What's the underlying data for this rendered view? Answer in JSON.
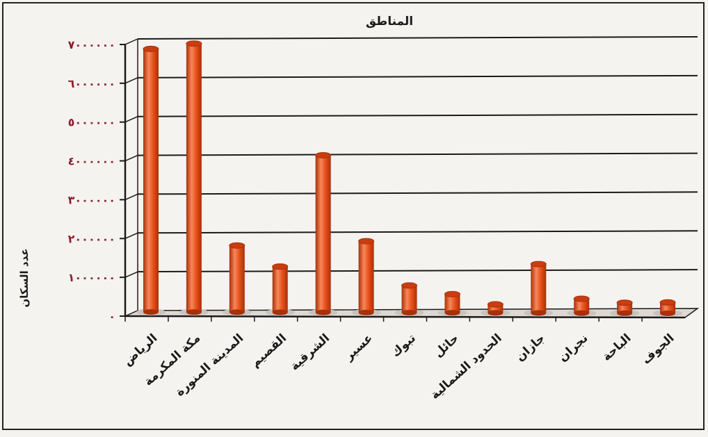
{
  "chart_data": {
    "type": "bar",
    "title": "المناطق",
    "xlabel": "",
    "ylabel": "عدد السكان",
    "ylim": [
      0,
      7000000
    ],
    "y_ticks": [
      0,
      1000000,
      2000000,
      3000000,
      4000000,
      5000000,
      6000000,
      7000000
    ],
    "y_tick_labels": [
      "٠",
      "١٠٠٠٠٠٠",
      "٢٠٠٠٠٠٠",
      "٣٠٠٠٠٠٠",
      "٤٠٠٠٠٠٠",
      "٥٠٠٠٠٠٠",
      "٦٠٠٠٠٠٠",
      "٧٠٠٠٠٠٠"
    ],
    "categories": [
      "الرياض",
      "مكة المكرمة",
      "المدينة المنورة",
      "القصيم",
      "الشرقية",
      "عسير",
      "تبوك",
      "حائل",
      "الحدود الشمالية",
      "جازان",
      "نجران",
      "الباحة",
      "الجوف"
    ],
    "values": [
      6780000,
      6920000,
      1720000,
      1180000,
      4050000,
      1840000,
      700000,
      480000,
      220000,
      1260000,
      370000,
      270000,
      280000
    ],
    "grid": true,
    "colors": {
      "bar": "#e8501a",
      "bar_highlight": "#f7885a",
      "bar_shadow": "#a8300a",
      "bar_top": "#c93d10",
      "tick_label": "#8a1f2a",
      "grid": "#1a1a1a"
    }
  }
}
